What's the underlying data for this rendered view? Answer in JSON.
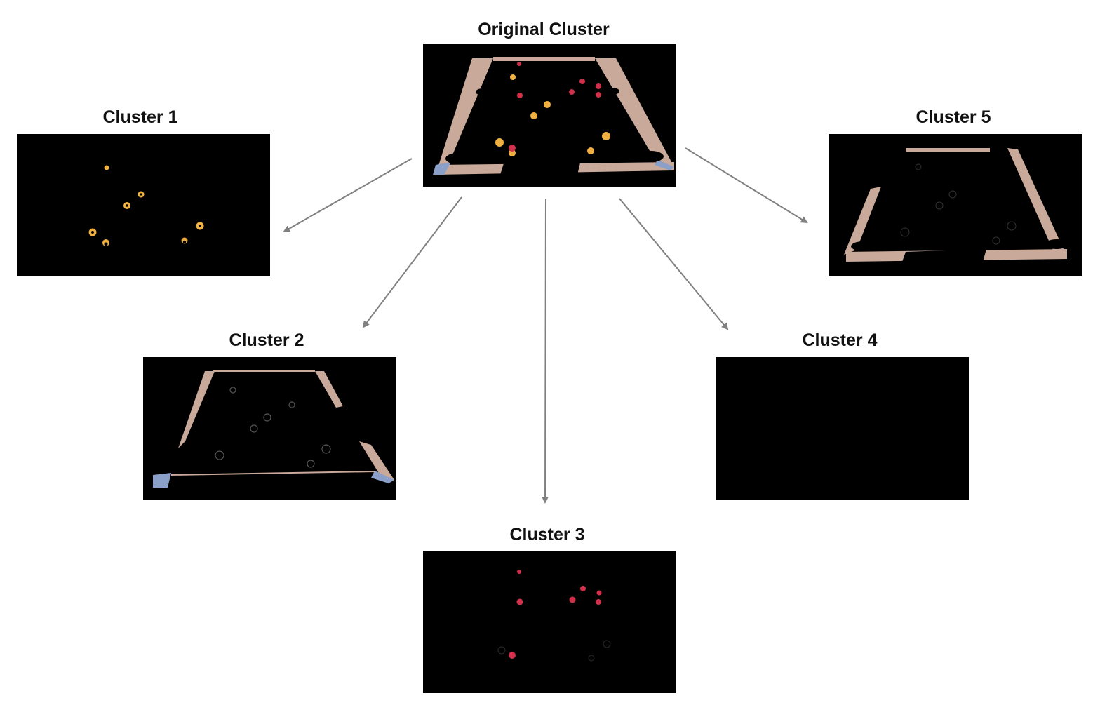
{
  "title": "Original Cluster",
  "clusters": [
    {
      "label": "Cluster 1",
      "content": "yellow balls"
    },
    {
      "label": "Cluster 2",
      "content": "table edges with blue corners"
    },
    {
      "label": "Cluster 3",
      "content": "red balls"
    },
    {
      "label": "Cluster 4",
      "content": "empty"
    },
    {
      "label": "Cluster 5",
      "content": "beige rails"
    }
  ],
  "colors": {
    "background": "#ffffff",
    "panel": "#000000",
    "rail": "#c9a99a",
    "corner": "#8aa0c8",
    "yellow_ball": "#f0b040",
    "red_ball": "#d0304a",
    "arrow": "#808080"
  }
}
